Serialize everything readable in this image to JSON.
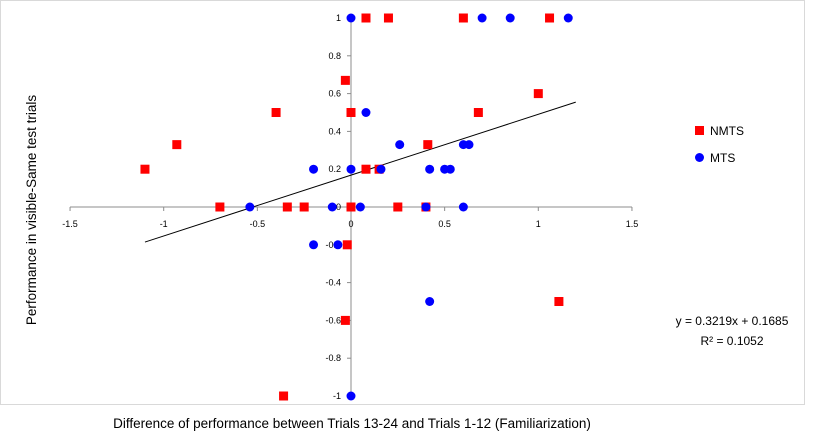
{
  "chart_data": {
    "type": "scatter",
    "xlabel": "Difference of performance between Trials 13-24 and Trials 1-12 (Familiarization)",
    "ylabel": "Performance in visible-Same test trials",
    "xlim": [
      -1.5,
      1.5
    ],
    "ylim": [
      -1,
      1
    ],
    "x_ticks": [
      -1.5,
      -1,
      -0.5,
      0,
      0.5,
      1,
      1.5
    ],
    "x_tick_labels": [
      "-1.5",
      "-1",
      "-0.5",
      "0",
      "0.5",
      "1",
      "1.5"
    ],
    "y_ticks": [
      1,
      0.8,
      0.6,
      0.4,
      0.2,
      0,
      -0.2,
      -0.4,
      -0.6,
      -0.8,
      -1
    ],
    "y_tick_labels": [
      "1",
      "0.8",
      "0.6",
      "0.4",
      "0.2",
      "0",
      "-0.2",
      "-0.4",
      "-0.6",
      "-0.8",
      "-1"
    ],
    "grid": false,
    "legend_position": "right",
    "series": [
      {
        "name": "NMTS",
        "color": "#ff0000",
        "marker": "square",
        "points": [
          [
            0.08,
            1.0
          ],
          [
            0.2,
            1.0
          ],
          [
            0.6,
            1.0
          ],
          [
            1.06,
            1.0
          ],
          [
            -0.03,
            0.67
          ],
          [
            1.0,
            0.6
          ],
          [
            -0.4,
            0.5
          ],
          [
            0.0,
            0.5
          ],
          [
            0.68,
            0.5
          ],
          [
            -0.93,
            0.33
          ],
          [
            0.41,
            0.33
          ],
          [
            -1.1,
            0.2
          ],
          [
            0.08,
            0.2
          ],
          [
            0.15,
            0.2
          ],
          [
            -0.7,
            0.0
          ],
          [
            -0.34,
            0.0
          ],
          [
            -0.25,
            0.0
          ],
          [
            0.0,
            0.0
          ],
          [
            0.25,
            0.0
          ],
          [
            0.4,
            0.0
          ],
          [
            -0.02,
            -0.2
          ],
          [
            -0.03,
            -0.6
          ],
          [
            1.11,
            -0.5
          ],
          [
            -0.36,
            -1.0
          ]
        ]
      },
      {
        "name": "MTS",
        "color": "#0000ff",
        "marker": "circle",
        "points": [
          [
            0.0,
            1.0
          ],
          [
            0.7,
            1.0
          ],
          [
            0.85,
            1.0
          ],
          [
            1.16,
            1.0
          ],
          [
            0.08,
            0.5
          ],
          [
            0.26,
            0.33
          ],
          [
            0.6,
            0.33
          ],
          [
            0.63,
            0.33
          ],
          [
            -0.2,
            0.2
          ],
          [
            0.0,
            0.2
          ],
          [
            0.16,
            0.2
          ],
          [
            0.42,
            0.2
          ],
          [
            0.5,
            0.2
          ],
          [
            0.53,
            0.2
          ],
          [
            -0.54,
            0.0
          ],
          [
            -0.1,
            0.0
          ],
          [
            0.05,
            0.0
          ],
          [
            0.4,
            0.0
          ],
          [
            0.6,
            0.0
          ],
          [
            -0.2,
            -0.2
          ],
          [
            -0.07,
            -0.2
          ],
          [
            0.42,
            -0.5
          ],
          [
            0.0,
            -1.0
          ]
        ]
      }
    ],
    "trendline": {
      "slope": 0.3219,
      "intercept": 0.1685,
      "x_range": [
        -1.1,
        1.2
      ],
      "equation": "y = 0.3219x + 0.1685",
      "r_squared": "R² = 0.1052"
    }
  }
}
